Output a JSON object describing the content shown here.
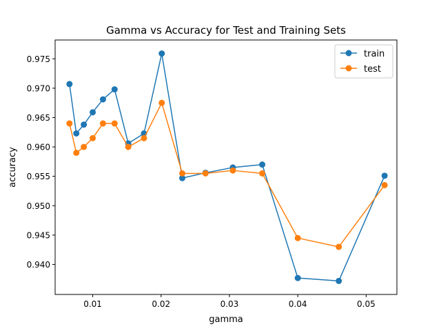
{
  "chart_data": {
    "type": "line",
    "title": "Gamma vs Accuracy for Test and Training Sets",
    "xlabel": "gamma",
    "ylabel": "accuracy",
    "xlim": [
      0.0045,
      0.0545
    ],
    "ylim": [
      0.9349,
      0.9782
    ],
    "x_ticks": [
      0.01,
      0.02,
      0.03,
      0.04,
      0.05
    ],
    "x_tick_labels": [
      "0.01",
      "0.02",
      "0.03",
      "0.04",
      "0.05"
    ],
    "y_ticks": [
      0.94,
      0.945,
      0.95,
      0.955,
      0.96,
      0.965,
      0.97,
      0.975
    ],
    "y_tick_labels": [
      "0.940",
      "0.945",
      "0.950",
      "0.955",
      "0.960",
      "0.965",
      "0.970",
      "0.975"
    ],
    "legend_position": "top-right",
    "grid": false,
    "x": [
      0.0066,
      0.0076,
      0.0087,
      0.01,
      0.0115,
      0.0132,
      0.0152,
      0.0175,
      0.0201,
      0.0231,
      0.0265,
      0.0305,
      0.0348,
      0.04,
      0.046,
      0.0527
    ],
    "series": [
      {
        "name": "train",
        "color": "#1f77b4",
        "values": [
          0.9707,
          0.9623,
          0.9638,
          0.9659,
          0.9681,
          0.9698,
          0.9606,
          0.9623,
          0.9759,
          0.9547,
          0.9556,
          0.9565,
          0.957,
          0.9377,
          0.9372,
          0.9551
        ]
      },
      {
        "name": "test",
        "color": "#ff7f0e",
        "values": [
          0.964,
          0.959,
          0.96,
          0.9615,
          0.964,
          0.964,
          0.96,
          0.9615,
          0.9675,
          0.9555,
          0.9555,
          0.956,
          0.9555,
          0.9445,
          0.943,
          0.9535
        ]
      }
    ]
  }
}
